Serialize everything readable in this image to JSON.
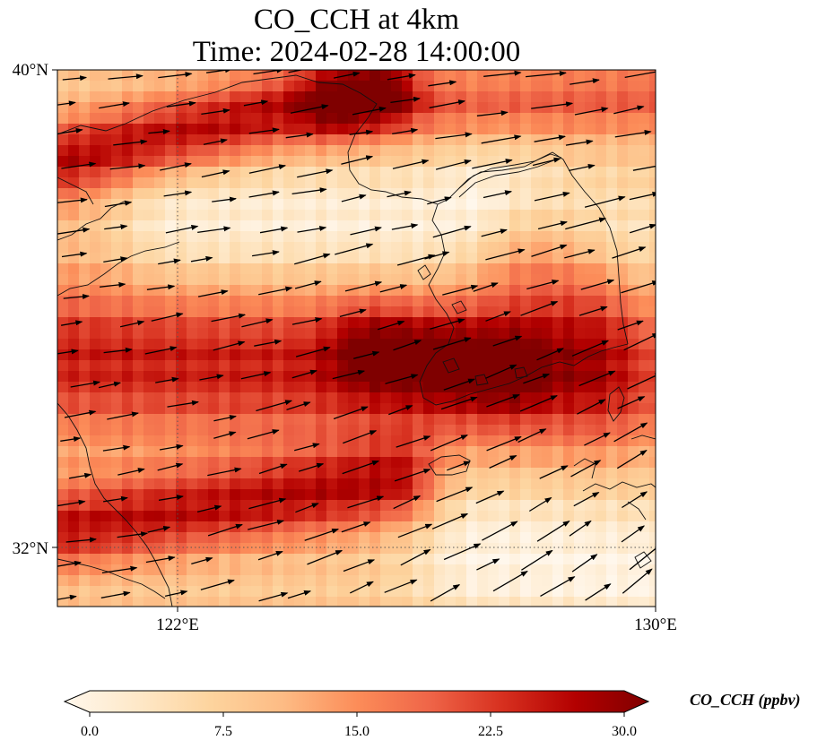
{
  "figure": {
    "title_line1": "CO_CCH at 4km",
    "title_line2": "Time: 2024-02-28 14:00:00"
  },
  "map": {
    "lon_range": [
      119,
      134
    ],
    "lat_range": [
      30.5,
      40
    ],
    "lat_ticks": [
      {
        "value": 40,
        "label": "40°N"
      },
      {
        "value": 32,
        "label": "32°N"
      }
    ],
    "lon_ticks": [
      {
        "value": 122,
        "label": "122°E"
      },
      {
        "value": 130,
        "label": "130°E"
      }
    ],
    "gridlines": "dotted",
    "coastlines": true,
    "wind_vectors": true
  },
  "colorbar": {
    "title": "CO_CCH (ppbv)",
    "min": 0,
    "max": 30,
    "extend": "both",
    "ticks": [
      {
        "value": 0,
        "label": "0.0"
      },
      {
        "value": 7.5,
        "label": "7.5"
      },
      {
        "value": 15,
        "label": "15.0"
      },
      {
        "value": 22.5,
        "label": "22.5"
      },
      {
        "value": 30,
        "label": "30.0"
      }
    ],
    "colormap": [
      "#fff7ec",
      "#fee8c8",
      "#fdd49e",
      "#fdbb84",
      "#fc8d59",
      "#ef6548",
      "#d7301f",
      "#b30000",
      "#7f0000"
    ]
  }
}
